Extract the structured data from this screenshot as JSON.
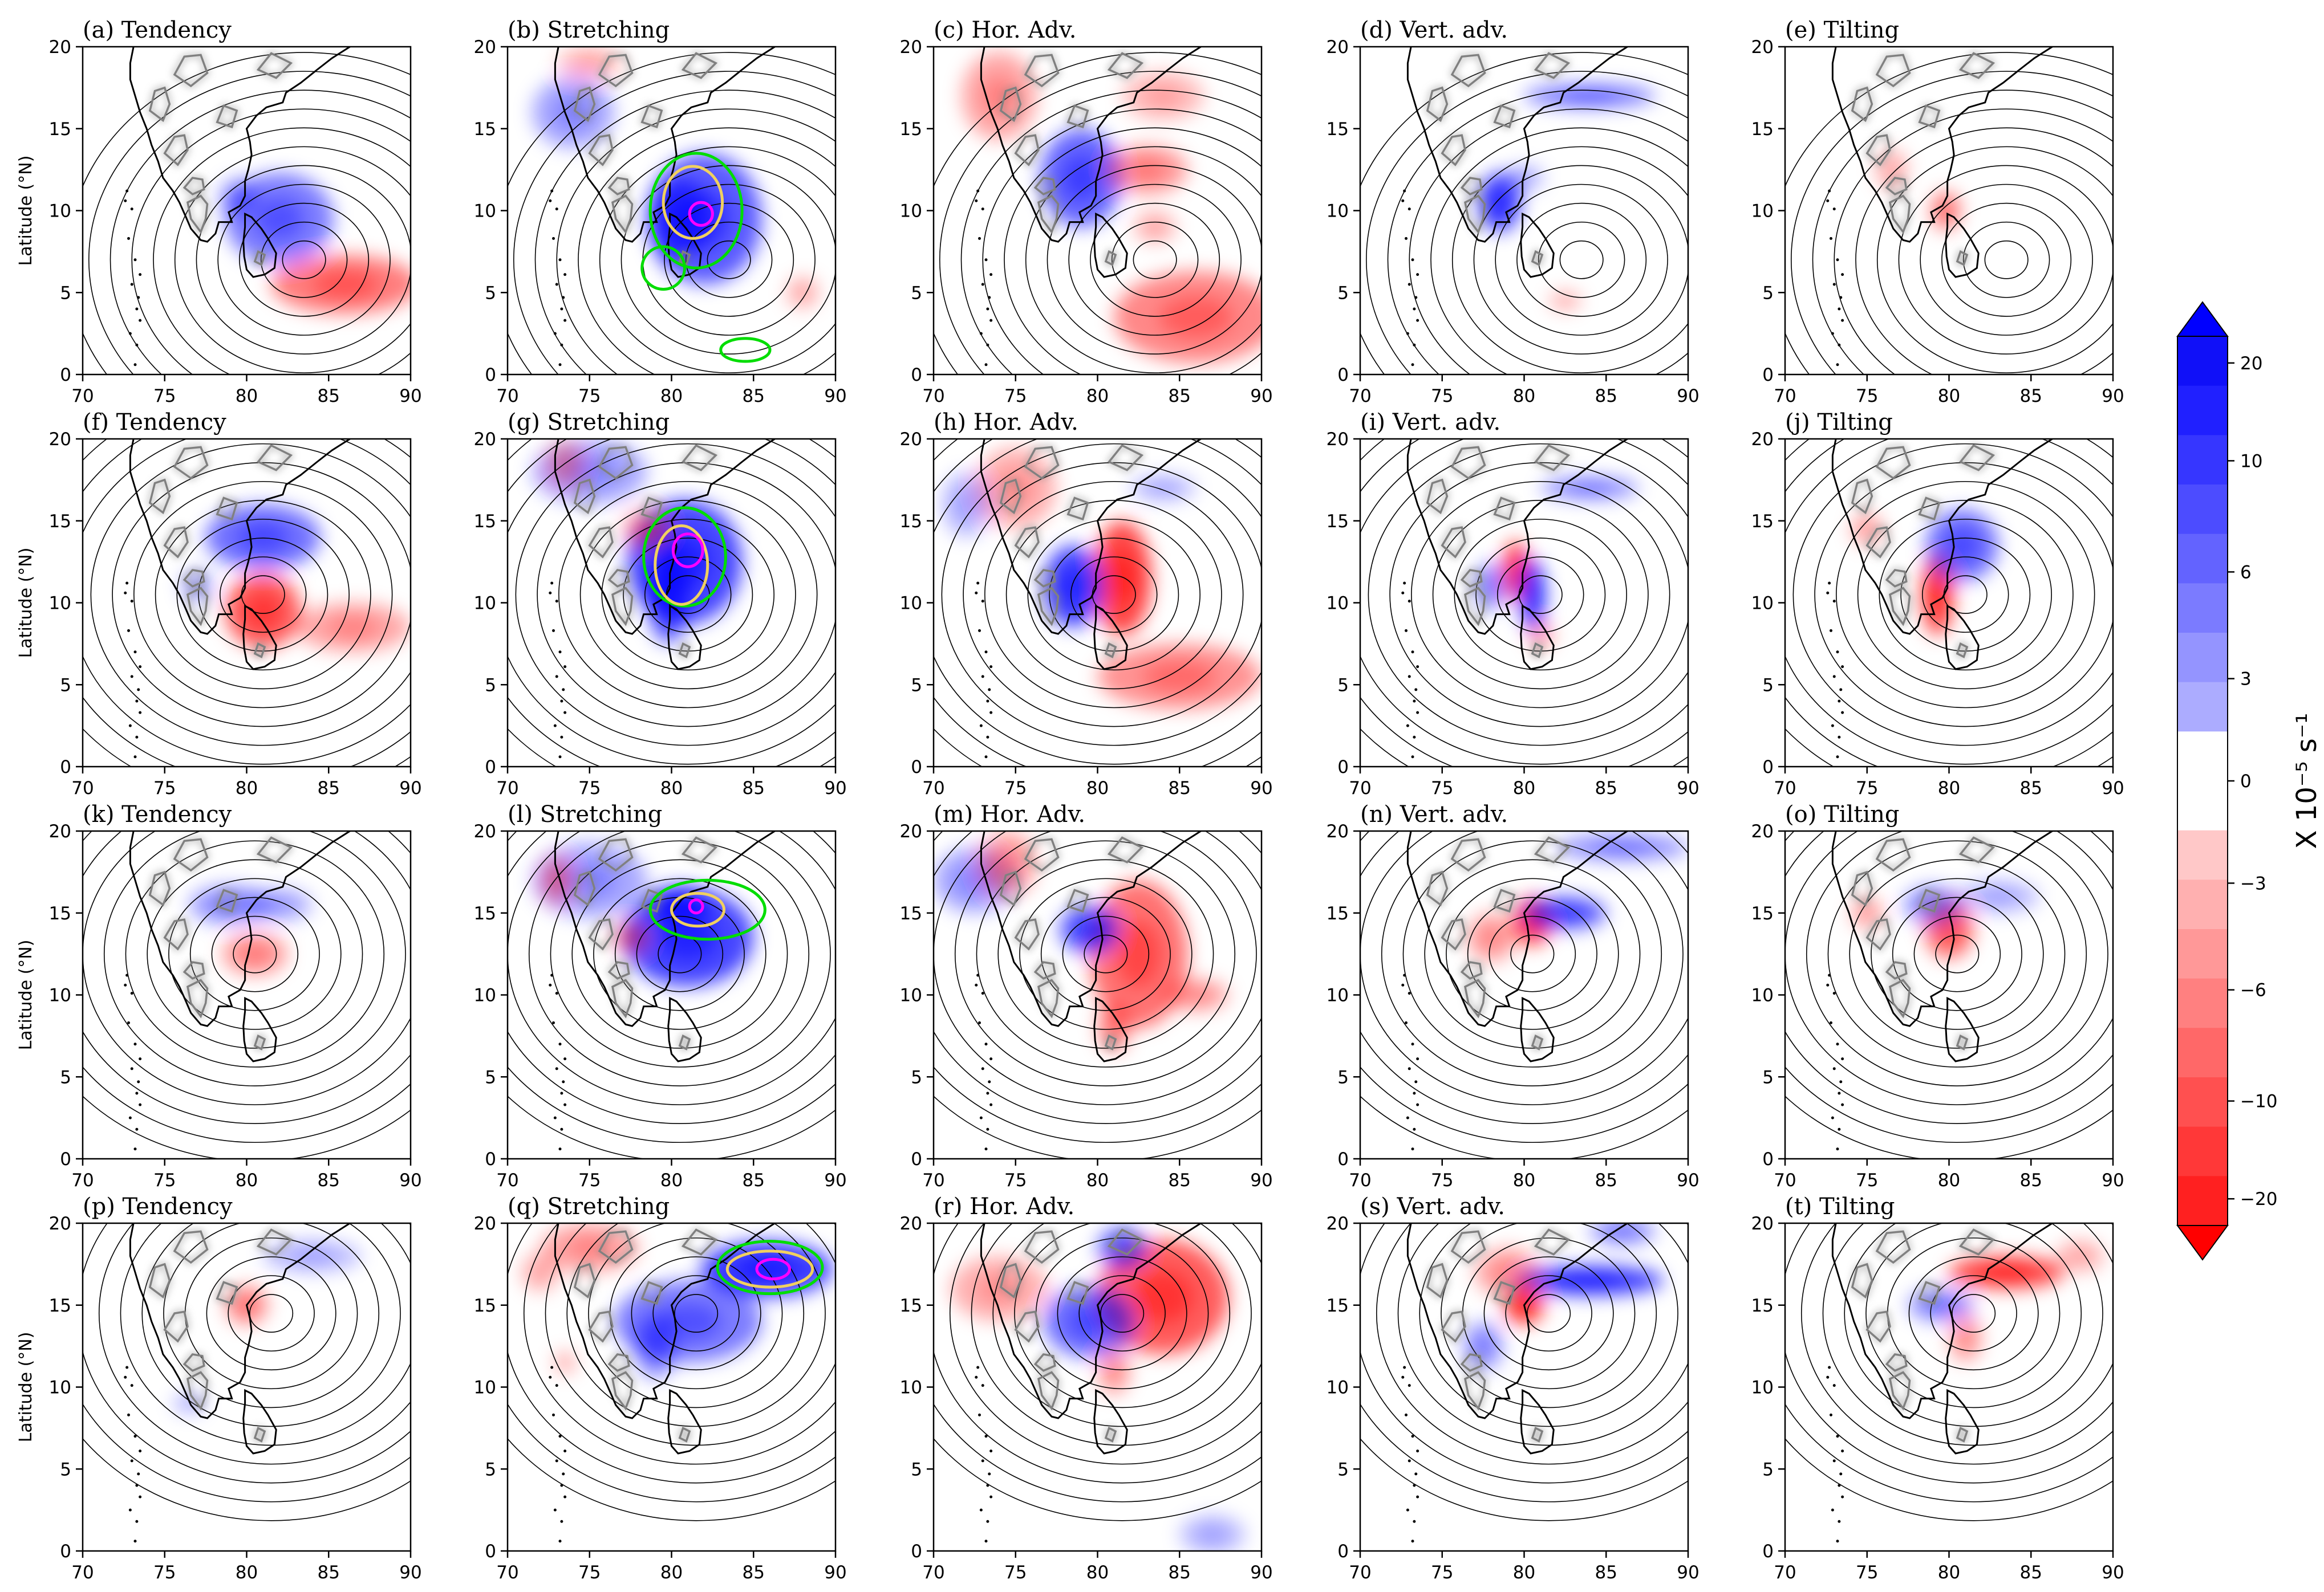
{
  "chart_data": {
    "type": "panel-map-grid",
    "layout": {
      "rows": 4,
      "cols": 5
    },
    "panels": [
      {
        "label": "(a)  Tendency"
      },
      {
        "label": "(b) Stretching"
      },
      {
        "label": "(c) Hor. Adv."
      },
      {
        "label": "(d) Vert. adv."
      },
      {
        "label": "(e) Tilting"
      },
      {
        "label": "(f)  Tendency"
      },
      {
        "label": "(g) Stretching"
      },
      {
        "label": "(h) Hor. Adv."
      },
      {
        "label": "(i) Vert. adv."
      },
      {
        "label": "(j) Tilting"
      },
      {
        "label": "(k)  Tendency"
      },
      {
        "label": "(l) Stretching"
      },
      {
        "label": "(m) Hor. Adv."
      },
      {
        "label": "(n) Vert. adv."
      },
      {
        "label": "(o) Tilting"
      },
      {
        "label": "(p)  Tendency"
      },
      {
        "label": "(q) Stretching"
      },
      {
        "label": "(r) Hor. Adv."
      },
      {
        "label": "(s) Vert. adv."
      },
      {
        "label": "(t) Tilting"
      }
    ],
    "xlim": [
      70,
      90
    ],
    "ylim": [
      0,
      20
    ],
    "xticks": [
      "70",
      "75",
      "80",
      "85",
      "90"
    ],
    "yticks": [
      "0",
      "5",
      "10",
      "15",
      "20"
    ],
    "ylabel": "Latitude (°N)",
    "centers": [
      [
        83.5,
        7.0
      ],
      [
        83.5,
        7.0
      ],
      [
        83.5,
        7.0
      ],
      [
        83.5,
        7.0
      ],
      [
        83.5,
        7.0
      ],
      [
        81.0,
        10.5
      ],
      [
        81.0,
        10.5
      ],
      [
        81.0,
        10.5
      ],
      [
        81.0,
        10.5
      ],
      [
        81.0,
        10.5
      ],
      [
        80.5,
        12.5
      ],
      [
        80.5,
        12.5
      ],
      [
        80.5,
        12.5
      ],
      [
        80.5,
        12.5
      ],
      [
        80.5,
        12.5
      ],
      [
        81.5,
        14.5
      ],
      [
        81.5,
        14.5
      ],
      [
        81.5,
        14.5
      ],
      [
        81.5,
        14.5
      ],
      [
        81.5,
        14.5
      ]
    ],
    "colorbar": {
      "label": "X 10⁻⁵ s⁻¹",
      "ticks": [
        "20",
        "10",
        "6",
        "3",
        "0",
        "−3",
        "−6",
        "−10",
        "−20"
      ],
      "positive_color": "#0000ff",
      "negative_color": "#ff0000"
    },
    "colors": {
      "coast": "#000000",
      "terrain": "#808080",
      "streamline": "#000000",
      "contour_green": "#00dd00",
      "contour_yellow": "#f0d060",
      "contour_magenta": "#ff00ff"
    }
  }
}
